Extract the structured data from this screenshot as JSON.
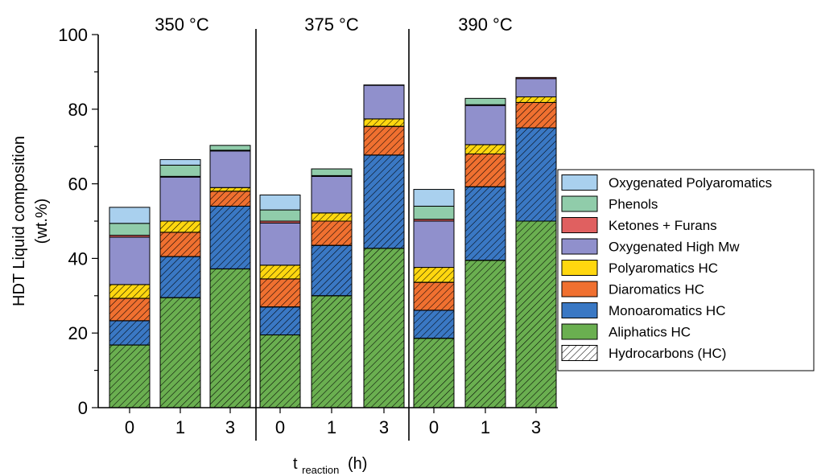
{
  "chart_data": {
    "type": "bar",
    "stacked": true,
    "xlabel_main": "t",
    "xlabel_sub": "reaction",
    "xlabel_unit": "(h)",
    "ylabel_line1": "HDT Liquid composition",
    "ylabel_line2": "(wt.%)",
    "ylim": [
      0,
      100
    ],
    "yticks": [
      "0",
      "20",
      "40",
      "60",
      "80",
      "100"
    ],
    "groups": [
      "350 °C",
      "375 °C",
      "390 °C"
    ],
    "categories": [
      "0",
      "1",
      "3",
      "0",
      "1",
      "3",
      "0",
      "1",
      "3"
    ],
    "series": [
      {
        "name": "Aliphatics HC",
        "color": "#6aaf50",
        "hatched": true,
        "values": [
          16.8,
          29.5,
          37.2,
          19.5,
          30.0,
          42.7,
          18.6,
          39.5,
          50.0
        ]
      },
      {
        "name": "Monoaromatics HC",
        "color": "#3a78c4",
        "hatched": true,
        "values": [
          6.5,
          11.0,
          16.8,
          7.5,
          13.5,
          25.0,
          7.5,
          19.7,
          25.0
        ]
      },
      {
        "name": "Diaromatics HC",
        "color": "#f07030",
        "hatched": true,
        "values": [
          6.0,
          6.5,
          4.0,
          7.5,
          6.5,
          7.7,
          7.5,
          8.8,
          6.8
        ]
      },
      {
        "name": "Polyaromatics HC",
        "color": "#ffd70f",
        "hatched": true,
        "values": [
          3.7,
          3.0,
          1.0,
          3.7,
          2.2,
          2.0,
          4.0,
          2.5,
          1.5
        ]
      },
      {
        "name": "Oxygenated High Mw",
        "color": "#9090cc",
        "hatched": false,
        "values": [
          12.7,
          11.8,
          9.8,
          11.3,
          9.8,
          9.0,
          12.4,
          10.5,
          4.9
        ]
      },
      {
        "name": "Ketones + Furans",
        "color": "#e06060",
        "hatched": false,
        "values": [
          0.5,
          0.2,
          0.2,
          0.5,
          0.2,
          0.1,
          0.5,
          0.2,
          0.3
        ]
      },
      {
        "name": "Phenols",
        "color": "#90ccaa",
        "hatched": false,
        "values": [
          3.2,
          3.0,
          1.3,
          3.0,
          1.8,
          0.0,
          3.5,
          1.7,
          0.0
        ]
      },
      {
        "name": "Oxygenated Polyaromatics",
        "color": "#a9d0ee",
        "hatched": false,
        "values": [
          4.3,
          1.5,
          0.0,
          4.0,
          0.0,
          0.0,
          4.5,
          0.0,
          0.0
        ]
      }
    ],
    "legend": {
      "position": "right",
      "entries": [
        {
          "name": "Oxygenated Polyaromatics",
          "color": "#a9d0ee",
          "hatched": false
        },
        {
          "name": "Phenols",
          "color": "#90ccaa",
          "hatched": false
        },
        {
          "name": "Ketones + Furans",
          "color": "#e06060",
          "hatched": false
        },
        {
          "name": "Oxygenated High Mw",
          "color": "#9090cc",
          "hatched": false
        },
        {
          "name": "Polyaromatics HC",
          "color": "#ffd70f",
          "hatched": false
        },
        {
          "name": "Diaromatics HC",
          "color": "#f07030",
          "hatched": false
        },
        {
          "name": "Monoaromatics HC",
          "color": "#3a78c4",
          "hatched": false
        },
        {
          "name": "Aliphatics HC",
          "color": "#6aaf50",
          "hatched": false
        },
        {
          "name": "Hydrocarbons (HC)",
          "color": "#ffffff",
          "hatched": true
        }
      ]
    },
    "grid": false
  }
}
